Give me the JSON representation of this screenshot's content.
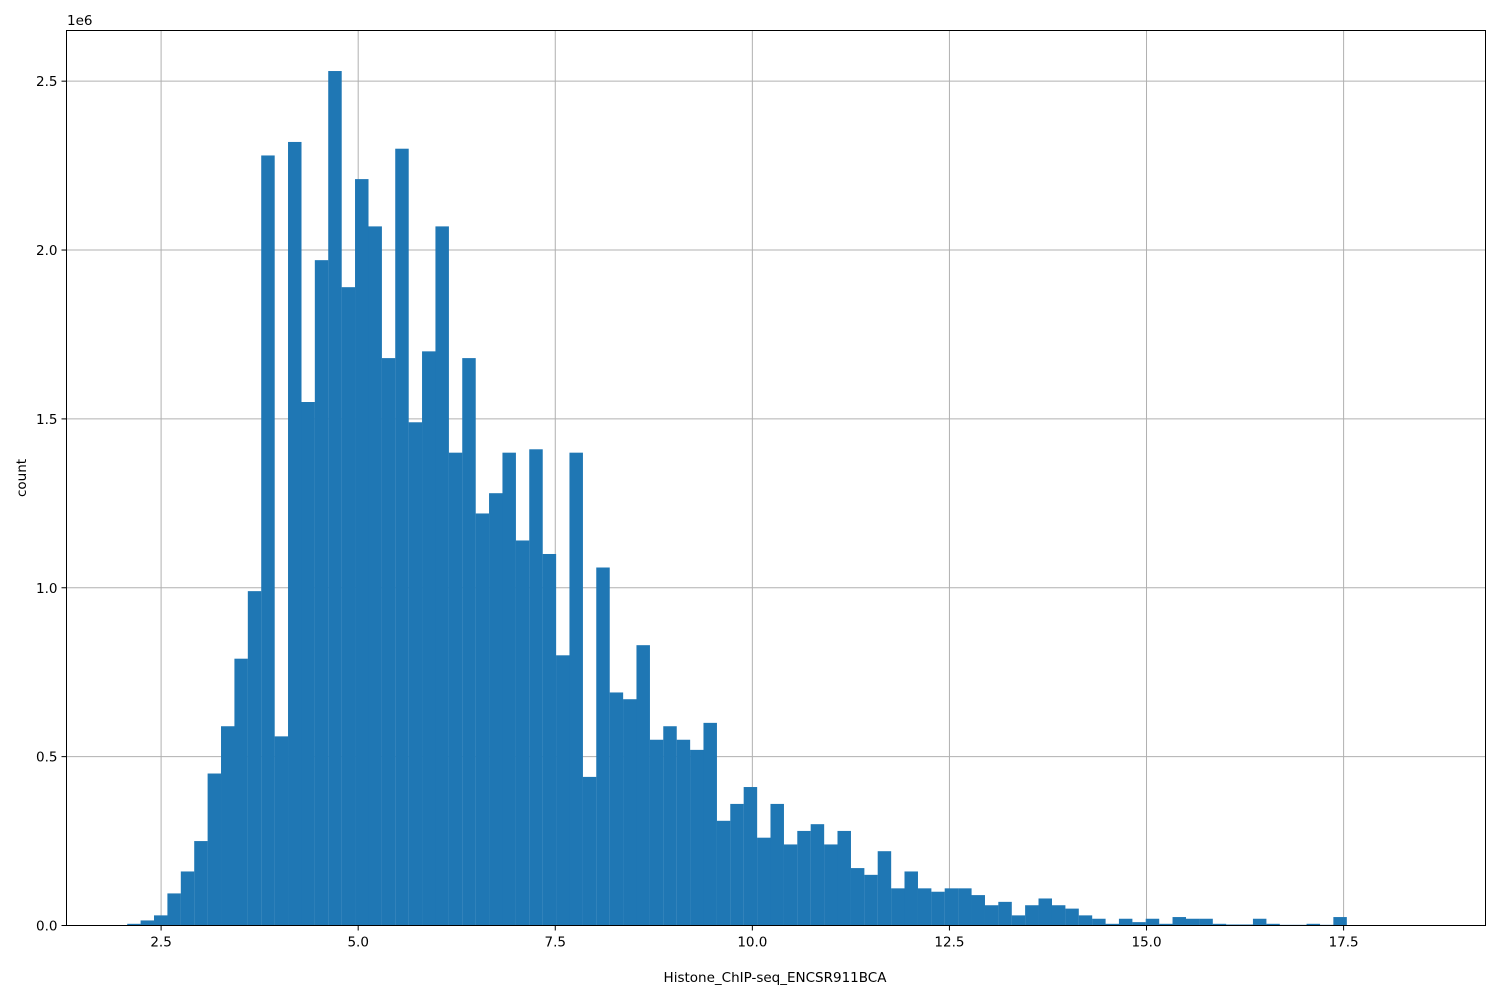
{
  "chart_data": {
    "type": "bar",
    "title": "",
    "xlabel": "Histone_ChIP-seq_ENCSR911BCA",
    "ylabel": "count",
    "y_offset_label": "1e6",
    "xlim": [
      1.3,
      19.3
    ],
    "ylim": [
      0,
      2650000
    ],
    "grid": true,
    "bar_color": "#1f77b4",
    "bin_width": 0.171,
    "x_ticks": [
      2.5,
      5.0,
      7.5,
      10.0,
      12.5,
      15.0,
      17.5
    ],
    "x_tick_labels": [
      "2.5",
      "5.0",
      "7.5",
      "10.0",
      "12.5",
      "15.0",
      "17.5"
    ],
    "y_ticks": [
      0,
      500000,
      1000000,
      1500000,
      2000000,
      2500000
    ],
    "y_tick_labels": [
      "0.0",
      "0.5",
      "1.0",
      "1.5",
      "2.0",
      "2.5"
    ],
    "bins_start": [
      2.07,
      2.24,
      2.41,
      2.58,
      2.75,
      2.92,
      3.09,
      3.26,
      3.43,
      3.6,
      3.77,
      3.94,
      4.11,
      4.28,
      4.45,
      4.62,
      4.79,
      4.96,
      5.13,
      5.3,
      5.47,
      5.64,
      5.81,
      5.98,
      6.15,
      6.32,
      6.49,
      6.66,
      6.83,
      7.0,
      7.17,
      7.34,
      7.51,
      7.68,
      7.85,
      8.02,
      8.19,
      8.36,
      8.53,
      8.7,
      8.87,
      9.04,
      9.21,
      9.38,
      9.55,
      9.72,
      9.89,
      10.06,
      10.23,
      10.4,
      10.57,
      10.74,
      10.91,
      11.08,
      11.25,
      11.42,
      11.59,
      11.76,
      11.93,
      12.1,
      12.27,
      12.44,
      12.61,
      12.78,
      12.95,
      13.12,
      13.29,
      13.46,
      13.63,
      13.8,
      13.97,
      14.14,
      14.31,
      14.48,
      14.65,
      14.82,
      14.99,
      15.16,
      15.33,
      15.5,
      15.67,
      15.84,
      16.01,
      16.18,
      16.35,
      16.52,
      16.69,
      16.86,
      17.03,
      17.2,
      17.37
    ],
    "values": [
      5000,
      15000,
      30000,
      95000,
      160000,
      250000,
      450000,
      590000,
      790000,
      990000,
      2280000,
      560000,
      2320000,
      1550000,
      1970000,
      2530000,
      1890000,
      2210000,
      2070000,
      1680000,
      2300000,
      1490000,
      1700000,
      2070000,
      1400000,
      1680000,
      1220000,
      1280000,
      1400000,
      1140000,
      1410000,
      1100000,
      800000,
      1400000,
      440000,
      1060000,
      690000,
      670000,
      830000,
      550000,
      590000,
      550000,
      520000,
      600000,
      310000,
      360000,
      410000,
      260000,
      360000,
      240000,
      280000,
      300000,
      240000,
      280000,
      170000,
      150000,
      220000,
      110000,
      160000,
      110000,
      100000,
      110000,
      110000,
      90000,
      60000,
      70000,
      30000,
      60000,
      80000,
      60000,
      50000,
      30000,
      20000,
      5000,
      20000,
      10000,
      20000,
      5000,
      25000,
      20000,
      20000,
      5000,
      3000,
      3000,
      20000,
      5000,
      2000,
      2000,
      5000,
      2000,
      25000
    ]
  }
}
